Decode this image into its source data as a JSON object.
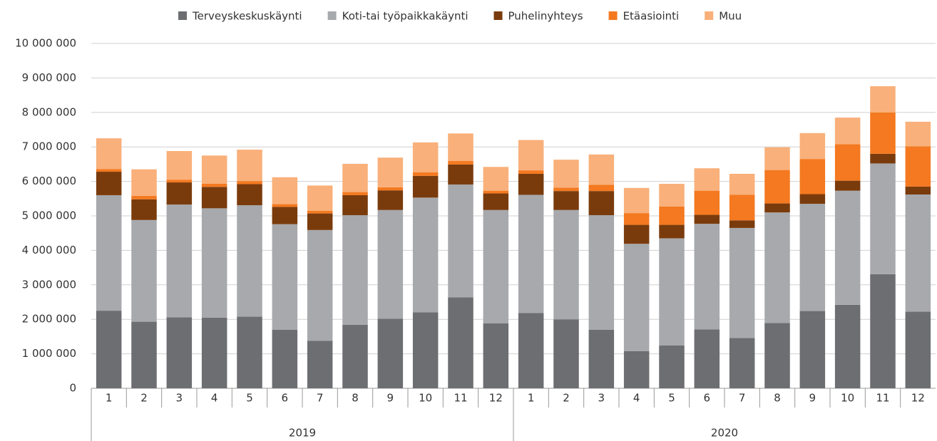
{
  "chart_data": {
    "type": "stacked_bar",
    "categories": [
      "1",
      "2",
      "3",
      "4",
      "5",
      "6",
      "7",
      "8",
      "9",
      "10",
      "11",
      "12",
      "1",
      "2",
      "3",
      "4",
      "5",
      "6",
      "7",
      "8",
      "9",
      "10",
      "11",
      "12"
    ],
    "x_groups": [
      {
        "label": "2019",
        "size": 12
      },
      {
        "label": "2020",
        "size": 12
      }
    ],
    "series": [
      {
        "name": "Terveyskeskuskäynti",
        "color": "#6d6e71",
        "values": [
          2250000,
          1930000,
          2060000,
          2050000,
          2080000,
          1700000,
          1380000,
          1840000,
          2020000,
          2200000,
          2640000,
          1880000,
          2180000,
          2000000,
          1700000,
          1080000,
          1240000,
          1710000,
          1460000,
          1890000,
          2240000,
          2420000,
          3310000,
          2220000
        ]
      },
      {
        "name": "Koti-tai työpaikkakäynti",
        "color": "#a7a9ac",
        "values": [
          3350000,
          2950000,
          3270000,
          3170000,
          3230000,
          3060000,
          3210000,
          3180000,
          3150000,
          3330000,
          3270000,
          3290000,
          3430000,
          3170000,
          3320000,
          3110000,
          3110000,
          3060000,
          3190000,
          3210000,
          3110000,
          3310000,
          3210000,
          3400000
        ]
      },
      {
        "name": "Puhelinyhteys",
        "color": "#7a3b0c",
        "values": [
          680000,
          600000,
          640000,
          620000,
          610000,
          500000,
          480000,
          580000,
          570000,
          630000,
          580000,
          480000,
          610000,
          550000,
          700000,
          550000,
          390000,
          260000,
          220000,
          260000,
          280000,
          290000,
          280000,
          230000
        ]
      },
      {
        "name": "Etäasiointi",
        "color": "#f47920",
        "values": [
          80000,
          100000,
          80000,
          90000,
          90000,
          80000,
          80000,
          90000,
          90000,
          100000,
          100000,
          80000,
          100000,
          100000,
          180000,
          340000,
          530000,
          700000,
          740000,
          970000,
          1020000,
          1060000,
          1200000,
          1170000
        ]
      },
      {
        "name": "Muu",
        "color": "#f9b07a",
        "values": [
          890000,
          770000,
          830000,
          820000,
          910000,
          780000,
          730000,
          820000,
          860000,
          870000,
          800000,
          690000,
          880000,
          810000,
          880000,
          730000,
          660000,
          650000,
          610000,
          660000,
          750000,
          770000,
          760000,
          710000
        ]
      }
    ],
    "ylim": [
      0,
      10000000
    ],
    "yticks": [
      0,
      {
        "value": 1000000,
        "label": "1 000 000"
      },
      {
        "value": 2000000,
        "label": "2 000 000"
      },
      {
        "value": 3000000,
        "label": "3 000 000"
      },
      {
        "value": 4000000,
        "label": "4 000 000"
      },
      {
        "value": 5000000,
        "label": "5 000 000"
      },
      {
        "value": 6000000,
        "label": "6 000 000"
      },
      {
        "value": 7000000,
        "label": "7 000 000"
      },
      {
        "value": 8000000,
        "label": "8 000 000"
      },
      {
        "value": 9000000,
        "label": "9 000 000"
      },
      {
        "value": 10000000,
        "label": "10 000 000"
      }
    ],
    "grid": true,
    "legend": "top"
  }
}
